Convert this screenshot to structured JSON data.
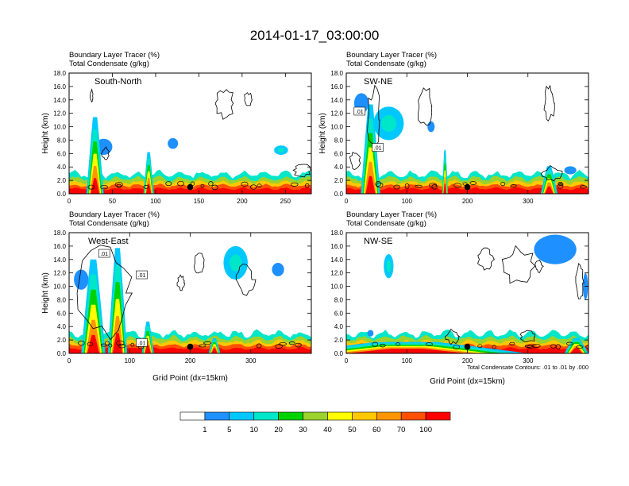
{
  "title": "2014-01-17_03:00:00",
  "colors": {
    "background": "#ffffff",
    "levels": [
      "#ffffff",
      "#1e90ff",
      "#00c8ff",
      "#00e6c8",
      "#00d200",
      "#9bd22d",
      "#ffff00",
      "#ffc800",
      "#ff9600",
      "#ff5000",
      "#ff0000"
    ]
  },
  "chart_data": [
    {
      "id": "south-north",
      "type": "heatmap",
      "subtitle1": "Boundary Layer Tracer   (%)",
      "subtitle2": "Total Condensate   (g/kg)",
      "label": "South-North",
      "ylabel": "Height (km)",
      "xlabel": "",
      "xlim": [
        0,
        280
      ],
      "xticks": [
        "0",
        "50",
        "100",
        "150",
        "200",
        "250"
      ],
      "ylim": [
        0,
        18
      ],
      "yticks": [
        "0.0",
        "2.0",
        "4.0",
        "6.0",
        "8.0",
        "10.0",
        "12.0",
        "14.0",
        "16.0",
        "18.0"
      ],
      "marker_x": 140,
      "contour_labels": [],
      "plumes": [
        {
          "x": 30,
          "halfwidth": 10,
          "top": 11.5,
          "strength": 0.95
        },
        {
          "x": 92,
          "halfwidth": 6,
          "top": 9.5,
          "strength": 0.6
        }
      ],
      "clouds": [
        {
          "x": 40,
          "y": 7.0,
          "rx": 10,
          "ry": 1.2,
          "level": 1
        },
        {
          "x": 120,
          "y": 7.5,
          "rx": 6,
          "ry": 0.8,
          "level": 1
        },
        {
          "x": 245,
          "y": 6.5,
          "rx": 8,
          "ry": 0.7,
          "level": 2
        }
      ],
      "outlines": [
        {
          "x": 180,
          "y": 13.5,
          "rx": 10,
          "ry": 2.0
        },
        {
          "x": 207,
          "y": 14.0,
          "rx": 5,
          "ry": 1.0
        },
        {
          "x": 26,
          "y": 14.6,
          "rx": 1.5,
          "ry": 0.8
        },
        {
          "x": 42,
          "y": 6.0,
          "rx": 4,
          "ry": 0.8
        },
        {
          "x": 270,
          "y": 3.5,
          "rx": 10,
          "ry": 0.9
        }
      ]
    },
    {
      "id": "sw-ne",
      "type": "heatmap",
      "subtitle1": "Boundary Layer Tracer   (%)",
      "subtitle2": "Total Condensate   (g/kg)",
      "label": "SW-NE",
      "ylabel": "Height (km)",
      "xlabel": "",
      "xlim": [
        0,
        400
      ],
      "xticks": [
        "0",
        "100",
        "200",
        "300"
      ],
      "ylim": [
        0,
        18
      ],
      "yticks": [
        "0.0",
        "2.0",
        "4.0",
        "6.0",
        "8.0",
        "10.0",
        "12.0",
        "14.0",
        "16.0",
        "18.0"
      ],
      "marker_x": 200,
      "contour_labels": [
        {
          "text": ".01",
          "x": 22,
          "y": 12.2
        },
        {
          "text": ".01",
          "x": 52,
          "y": 6.8
        }
      ],
      "plumes": [
        {
          "x": 40,
          "halfwidth": 16,
          "top": 13.5,
          "strength": 0.95
        },
        {
          "x": 163,
          "halfwidth": 5,
          "top": 7.5,
          "strength": 0.8
        },
        {
          "x": 335,
          "halfwidth": 14,
          "top": 4.0,
          "strength": 0.9
        }
      ],
      "clouds": [
        {
          "x": 70,
          "y": 10.5,
          "rx": 25,
          "ry": 2.5,
          "level": 2
        },
        {
          "x": 140,
          "y": 10.0,
          "rx": 6,
          "ry": 0.8,
          "level": 1
        },
        {
          "x": 25,
          "y": 13.5,
          "rx": 12,
          "ry": 1.5,
          "level": 1
        },
        {
          "x": 370,
          "y": 3.5,
          "rx": 10,
          "ry": 0.6,
          "level": 1
        }
      ],
      "outlines": [
        {
          "x": 130,
          "y": 13.0,
          "rx": 12,
          "ry": 2.5
        },
        {
          "x": 335,
          "y": 13.5,
          "rx": 8,
          "ry": 2.5
        },
        {
          "x": 45,
          "y": 11.0,
          "rx": 10,
          "ry": 4.5
        },
        {
          "x": 15,
          "y": 5.0,
          "rx": 8,
          "ry": 1.2
        },
        {
          "x": 340,
          "y": 3.0,
          "rx": 15,
          "ry": 1.0
        }
      ]
    },
    {
      "id": "west-east",
      "type": "heatmap",
      "subtitle1": "Boundary Layer Tracer   (%)",
      "subtitle2": "Total Condensate   (g/kg)",
      "label": "West-East",
      "ylabel": "Height (km)",
      "xlabel": "Grid Point (dx=15km)",
      "xlim": [
        0,
        400
      ],
      "xticks": [
        "0",
        "100",
        "200",
        "300"
      ],
      "ylim": [
        0,
        18
      ],
      "yticks": [
        "0.0",
        "2.0",
        "4.0",
        "6.0",
        "8.0",
        "10.0",
        "12.0",
        "14.0",
        "16.0",
        "18.0"
      ],
      "marker_x": 200,
      "contour_labels": [
        {
          "text": ".01",
          "x": 58,
          "y": 14.8
        },
        {
          "text": ".01",
          "x": 120,
          "y": 11.6
        },
        {
          "text": ".01",
          "x": 120,
          "y": 1.5
        }
      ],
      "plumes": [
        {
          "x": 40,
          "halfwidth": 20,
          "top": 13.5,
          "strength": 1.0
        },
        {
          "x": 80,
          "halfwidth": 16,
          "top": 16.0,
          "strength": 0.95
        },
        {
          "x": 130,
          "halfwidth": 10,
          "top": 5.0,
          "strength": 0.85
        },
        {
          "x": 240,
          "halfwidth": 10,
          "top": 2.5,
          "strength": 0.7
        }
      ],
      "clouds": [
        {
          "x": 275,
          "y": 13.5,
          "rx": 20,
          "ry": 2.5,
          "level": 2
        },
        {
          "x": 345,
          "y": 12.5,
          "rx": 10,
          "ry": 1.0,
          "level": 1
        },
        {
          "x": 20,
          "y": 11.0,
          "rx": 12,
          "ry": 1.5,
          "level": 1
        }
      ],
      "outlines": [
        {
          "x": 215,
          "y": 13.5,
          "rx": 8,
          "ry": 1.5
        },
        {
          "x": 185,
          "y": 10.5,
          "rx": 6,
          "ry": 1.0
        },
        {
          "x": 290,
          "y": 11.0,
          "rx": 15,
          "ry": 2.0
        },
        {
          "x": 60,
          "y": 9.0,
          "rx": 40,
          "ry": 6.0
        }
      ]
    },
    {
      "id": "nw-se",
      "type": "heatmap",
      "subtitle1": "Boundary Layer Tracer   (%)",
      "subtitle2": "Total Condensate   (g/kg)",
      "label": "NW-SE",
      "ylabel": "",
      "xlabel": "Grid Point (dx=15km)",
      "xlim": [
        0,
        400
      ],
      "xticks": [
        "0",
        "100",
        "200",
        "300"
      ],
      "ylim": [
        0,
        18
      ],
      "yticks": [
        "0.0",
        "2.0",
        "4.0",
        "6.0",
        "8.0",
        "10.0",
        "12.0",
        "14.0",
        "16.0",
        "18.0"
      ],
      "marker_x": 200,
      "note": "Total Condensate Contours: .01 to .01 by .000",
      "contour_labels": [],
      "plumes": [
        {
          "x": 100,
          "halfwidth": 200,
          "top": 2.0,
          "strength": 0.6
        },
        {
          "x": 380,
          "halfwidth": 20,
          "top": 3.0,
          "strength": 0.6
        }
      ],
      "clouds": [
        {
          "x": 70,
          "y": 13.0,
          "rx": 8,
          "ry": 1.8,
          "level": 2
        },
        {
          "x": 345,
          "y": 15.5,
          "rx": 35,
          "ry": 2.2,
          "level": 1
        },
        {
          "x": 395,
          "y": 10.0,
          "rx": 4,
          "ry": 2.0,
          "level": 1
        },
        {
          "x": 40,
          "y": 3.0,
          "rx": 5,
          "ry": 0.5,
          "level": 1
        }
      ],
      "outlines": [
        {
          "x": 230,
          "y": 14.0,
          "rx": 12,
          "ry": 1.5
        },
        {
          "x": 285,
          "y": 13.0,
          "rx": 25,
          "ry": 2.5
        },
        {
          "x": 318,
          "y": 13.0,
          "rx": 6,
          "ry": 0.8
        },
        {
          "x": 385,
          "y": 10.5,
          "rx": 6,
          "ry": 2.5
        },
        {
          "x": 175,
          "y": 2.5,
          "rx": 10,
          "ry": 1.0
        },
        {
          "x": 300,
          "y": 2.5,
          "rx": 12,
          "ry": 0.9
        }
      ]
    }
  ],
  "colorbar": {
    "labels": [
      "1",
      "5",
      "10",
      "20",
      "30",
      "40",
      "50",
      "60",
      "70",
      "100"
    ]
  }
}
